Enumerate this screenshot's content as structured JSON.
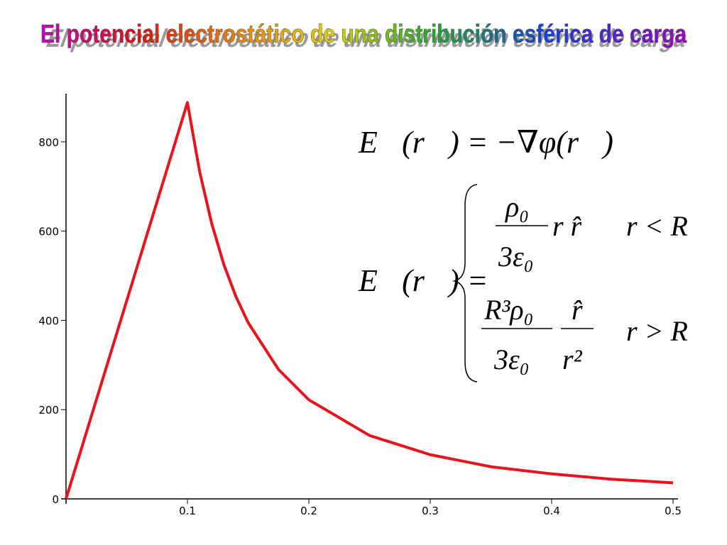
{
  "chart_data": {
    "type": "line",
    "title": "El potencial electrostático de una distribución esférica de carga",
    "x": [
      0,
      0.1,
      0.11,
      0.12,
      0.13,
      0.14,
      0.15,
      0.175,
      0.2,
      0.25,
      0.3,
      0.35,
      0.4,
      0.45,
      0.5
    ],
    "values": [
      0,
      888,
      734,
      617,
      525,
      453,
      395,
      290,
      222,
      142,
      99,
      72,
      56,
      44,
      36
    ],
    "color": "#e8141c",
    "xlim": [
      0,
      0.5
    ],
    "xticks": [
      0.1,
      0.2,
      0.3,
      0.4,
      0.5
    ],
    "ylim": [
      0,
      908
    ],
    "yticks": [
      0,
      200,
      400,
      600,
      800
    ],
    "equations": [
      "E⃗(r⃗) = −∇φ(r⃗)",
      "E⃗(r⃗) =",
      "ρ₀",
      "3ε₀",
      "r r̂",
      "r < R",
      "R³ρ₀",
      "3ε₀",
      "r̂",
      "r²",
      "r > R"
    ]
  }
}
